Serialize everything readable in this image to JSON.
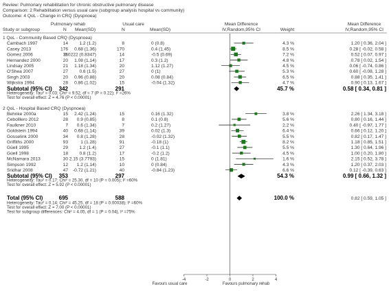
{
  "header": {
    "review": "Review:  Pulmonary rehabilitation for chronic obstructive pulmonary disease",
    "comparison": "Comparison:  2 Rehabilitation versus usual care (subgroup analysis hospital vs community)",
    "outcome": "Outcome:  4 QoL - Change in CRQ (Dyspnoea)"
  },
  "columns": {
    "study": "Study or subgroup",
    "exp_group": "Pulmonary rehab",
    "exp_n": "N",
    "exp_mean": "Mean(SD)",
    "ctl_group": "Usual care",
    "ctl_n": "N",
    "ctl_mean": "Mean(SD)",
    "md_title": "Mean Difference",
    "md_method": "IV,Random,95% CI",
    "weight": "Weight",
    "md2_title": "Mean Difference",
    "md2_method": "IV,Random,95% CI"
  },
  "chart_data": {
    "type": "forest",
    "x_axis": {
      "min": -4,
      "max": 4,
      "ticks": [
        -4,
        -2,
        0,
        2,
        4
      ]
    },
    "favours_left": "Favours usual care",
    "favours_right": "Favours pulmonary rehab",
    "subgroups": [
      {
        "title": "1 QoL - Community Based CRQ (Dyspnoea)",
        "studies": [
          {
            "name": "Cambach 1997",
            "n1": "14",
            "m1": "1.2 (1.2)",
            "n2": "8",
            "m2": "0 (0.8)",
            "weight": "4.3 %",
            "ci_text": "1.20 [ 0.36, 2.04 ]",
            "md": 1.2,
            "lo": 0.36,
            "hi": 2.04
          },
          {
            "name": "Casey 2013",
            "n1": "176",
            "m1": "0.68 (1.36)",
            "n2": "170",
            "m2": "0.4 (1.45)",
            "weight": "8.5 %",
            "ci_text": "0.28 [ -0.02, 0.58 ]",
            "md": 0.28,
            "lo": -0.02,
            "hi": 0.58
          },
          {
            "name": "Gomez 2006",
            "n1": "36",
            "m1": "0.0222 (0.8347)",
            "n2": "14",
            "m2": "-0.5 (0.69)",
            "weight": "7.2 %",
            "ci_text": "0.52 [ 0.07, 0.97 ]",
            "md": 0.52,
            "lo": 0.07,
            "hi": 0.97
          },
          {
            "name": "Hernandez 2000",
            "n1": "20",
            "m1": "1.08 (1.14)",
            "n2": "17",
            "m2": "0.3 (1.2)",
            "weight": "4.8 %",
            "ci_text": "0.78 [ 0.02, 1.54 ]",
            "md": 0.78,
            "lo": 0.02,
            "hi": 1.54
          },
          {
            "name": "Lindsay 2005",
            "n1": "21",
            "m1": "1.18 (1.34)",
            "n2": "20",
            "m2": "1.12 (1.27)",
            "weight": "4.5 %",
            "ci_text": "0.06 [ -0.74, 0.86 ]",
            "md": 0.06,
            "lo": -0.74,
            "hi": 0.86
          },
          {
            "name": "O'Shea 2007",
            "n1": "27",
            "m1": "0.6 (1.5)",
            "n2": "27",
            "m2": "0 (1)",
            "weight": "5.3 %",
            "ci_text": "0.60 [ -0.08, 1.28 ]",
            "md": 0.6,
            "lo": -0.08,
            "hi": 1.28
          },
          {
            "name": "Singh 2003",
            "n1": "20",
            "m1": "0.96 (0.88)",
            "n2": "20",
            "m2": "0.08 (0.84)",
            "weight": "6.5 %",
            "ci_text": "0.88 [ 0.35, 1.41 ]",
            "md": 0.88,
            "lo": 0.35,
            "hi": 1.41
          },
          {
            "name": "Wijkstra 1994",
            "n1": "28",
            "m1": "0.86 (1.02)",
            "n2": "15",
            "m2": "-0.04 (1.32)",
            "weight": "4.7 %",
            "ci_text": "0.90 [ 0.13, 1.67 ]",
            "md": 0.9,
            "lo": 0.13,
            "hi": 1.67
          }
        ],
        "subtotal": {
          "label": "Subtotal (95% CI)",
          "n1": "342",
          "n2": "291",
          "weight": "45.7 %",
          "ci_text": "0.58 [ 0.34, 0.81 ]",
          "md": 0.58,
          "lo": 0.34,
          "hi": 0.81
        },
        "heterogeneity": "Heterogeneity: Tau² = 0.03; Chi² = 9.52, df = 7 (P = 0.22); I² =26%",
        "overall_test": "Test for overall effect: Z = 4.76 (P < 0.00001)"
      },
      {
        "title": "2 QoL - Hospital Based CRQ (Dyspnoea)",
        "studies": [
          {
            "name": "Behnke 2000a",
            "n1": "15",
            "m1": "2.42 (1.24)",
            "n2": "15",
            "m2": "0.16 (1.32)",
            "weight": "3.8 %",
            "ci_text": "2.26 [ 1.34, 3.18 ]",
            "md": 2.26,
            "lo": 1.34,
            "hi": 3.18
          },
          {
            "name": "Cebolllero 2012",
            "n1": "28",
            "m1": "0.9 (0.85)",
            "n2": "8",
            "m2": "0.1 (0.8)",
            "weight": "5.6 %",
            "ci_text": "0.80 [ 0.16, 1.44 ]",
            "md": 0.8,
            "lo": 0.16,
            "hi": 1.44
          },
          {
            "name": "Faulkner 2010",
            "n1": "7",
            "m1": "0.6 (1.34)",
            "n2": "7",
            "m2": "0.2 (1.27)",
            "weight": "2.2 %",
            "ci_text": "0.40 [ -0.97, 1.77 ]",
            "md": 0.4,
            "lo": -0.97,
            "hi": 1.77
          },
          {
            "name": "Goldstein 1994",
            "n1": "40",
            "m1": "0.68 (1.14)",
            "n2": "39",
            "m2": "0.02 (1.3)",
            "weight": "6.4 %",
            "ci_text": "0.66 [ 0.12, 1.20 ]",
            "md": 0.66,
            "lo": 0.12,
            "hi": 1.2
          },
          {
            "name": "Gosselink 2000",
            "n1": "34",
            "m1": "0.8 (1.28)",
            "n2": "28",
            "m2": "-0.02 (1.32)",
            "weight": "5.5 %",
            "ci_text": "0.82 [ 0.17, 1.47 ]",
            "md": 0.82,
            "lo": 0.17,
            "hi": 1.47
          },
          {
            "name": "Griffiths 2000",
            "n1": "93",
            "m1": "1 (1.28)",
            "n2": "91",
            "m2": "-0.18 (1)",
            "weight": "8.2 %",
            "ci_text": "1.18 [ 0.85, 1.51 ]",
            "md": 1.18,
            "lo": 0.85,
            "hi": 1.51
          },
          {
            "name": "Güell 1995",
            "n1": "29",
            "m1": "1.2 (1.4)",
            "n2": "27",
            "m2": "-0.1 (1.1)",
            "weight": "5.5 %",
            "ci_text": "1.30 [ 0.64, 1.96 ]",
            "md": 1.3,
            "lo": 0.64,
            "hi": 1.96
          },
          {
            "name": "Güell 1998",
            "n1": "18",
            "m1": "0.8 (1.2)",
            "n2": "17",
            "m2": "-0.2 (1.2)",
            "weight": "4.5 %",
            "ci_text": "1.00 [ 0.20, 1.80 ]",
            "md": 1.0,
            "lo": 0.2,
            "hi": 1.8
          },
          {
            "name": "McNamara 2013",
            "n1": "30",
            "m1": "2.15 (3.7793)",
            "n2": "15",
            "m2": "0 (1.81)",
            "weight": "1.6 %",
            "ci_text": "2.15 [ 0.52, 3.78 ]",
            "md": 2.15,
            "lo": 0.52,
            "hi": 3.78
          },
          {
            "name": "Simpson 1992",
            "n1": "12",
            "m1": "1.2 (1.14)",
            "n2": "10",
            "m2": "0 (0.84)",
            "weight": "4.3 %",
            "ci_text": "1.20 [ 0.37, 2.03 ]",
            "md": 1.2,
            "lo": 0.37,
            "hi": 2.03
          },
          {
            "name": "Sridhar 2008",
            "n1": "47",
            "m1": "-0.72 (1.21)",
            "n2": "40",
            "m2": "-0.84 (1.23)",
            "weight": "6.6 %",
            "ci_text": "0.12 [ -0.39, 0.63 ]",
            "md": 0.12,
            "lo": -0.39,
            "hi": 0.63
          }
        ],
        "subtotal": {
          "label": "Subtotal (95% CI)",
          "n1": "353",
          "n2": "297",
          "weight": "54.3 %",
          "ci_text": "0.99 [ 0.66, 1.32 ]",
          "md": 0.99,
          "lo": 0.66,
          "hi": 1.32
        },
        "heterogeneity": "Heterogeneity: Tau² = 0.17; Chi² = 25.30, df = 10 (P = 0.005); I² =60%",
        "overall_test": "Test for overall effect: Z = 5.92 (P < 0.00001)"
      }
    ],
    "total": {
      "label": "Total (95% CI)",
      "n1": "695",
      "n2": "588",
      "weight": "100.0 %",
      "ci_text": "0.82 [ 0.59, 1.05 ]",
      "md": 0.82,
      "lo": 0.59,
      "hi": 1.05,
      "heterogeneity": "Heterogeneity: Tau² = 0.14; Chi² = 45.25, df = 18 (P = 0.00038); I² =60%",
      "overall_test": "Test for overall effect: Z = 7.00 (P < 0.00001)",
      "subgroup_test": "Test for subgroup differences: Chi² = 4.05, df = 1 (P = 0.04), I² =75%"
    }
  }
}
